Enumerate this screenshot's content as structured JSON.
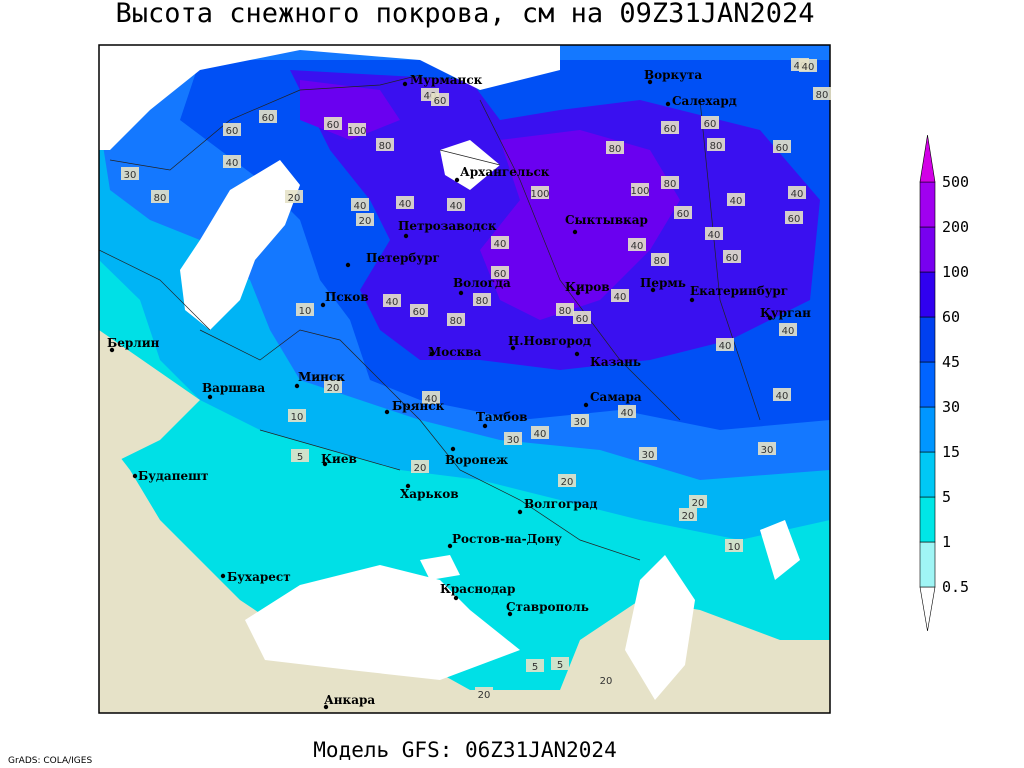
{
  "title": "Высота снежного покрова, см на 09Z31JAN2024",
  "footer": "Модель GFS: 06Z31JAN2024",
  "credit": "GrADS: COLA/IGES",
  "cities": [
    "Мурманск",
    "Воркута",
    "Салехард",
    "Архангельск",
    "Сыктывкар",
    "Петрозаводск",
    "Петербург",
    "Вологда",
    "Киров",
    "Пермь",
    "Екатеринбург",
    "Курган",
    "Псков",
    "Москва",
    "Н.Новгород",
    "Казань",
    "Берлин",
    "Минск",
    "Варшава",
    "Брянск",
    "Тамбов",
    "Самара",
    "Киев",
    "Воронеж",
    "Будапешт",
    "Харьков",
    "Волгоград",
    "Ростов-на-Дону",
    "Бухарест",
    "Краснодар",
    "Ставрополь",
    "Анкара"
  ],
  "contour_labels": [
    40,
    40,
    60,
    60,
    60,
    100,
    80,
    60,
    40,
    30,
    80,
    20,
    40,
    40,
    20,
    40,
    100,
    80,
    100,
    80,
    60,
    60,
    80,
    40,
    60,
    40,
    60,
    40,
    60,
    80,
    80,
    60,
    40,
    10,
    20,
    40,
    80,
    60,
    40,
    80,
    40,
    40,
    40,
    40,
    30,
    40,
    30,
    40,
    30,
    30,
    20,
    20,
    20,
    20,
    10,
    5,
    10,
    5,
    5,
    20,
    20,
    40,
    80,
    60,
    40,
    60
  ],
  "legend": {
    "levels": [
      0.5,
      1,
      5,
      15,
      30,
      45,
      60,
      100,
      200,
      500
    ],
    "colors": [
      "#ffffff",
      "#a0f5f5",
      "#00e6e6",
      "#00c8f5",
      "#0096ff",
      "#0064ff",
      "#0040f0",
      "#3000f0",
      "#7800f0",
      "#a000f0",
      "#d200e6"
    ]
  }
}
